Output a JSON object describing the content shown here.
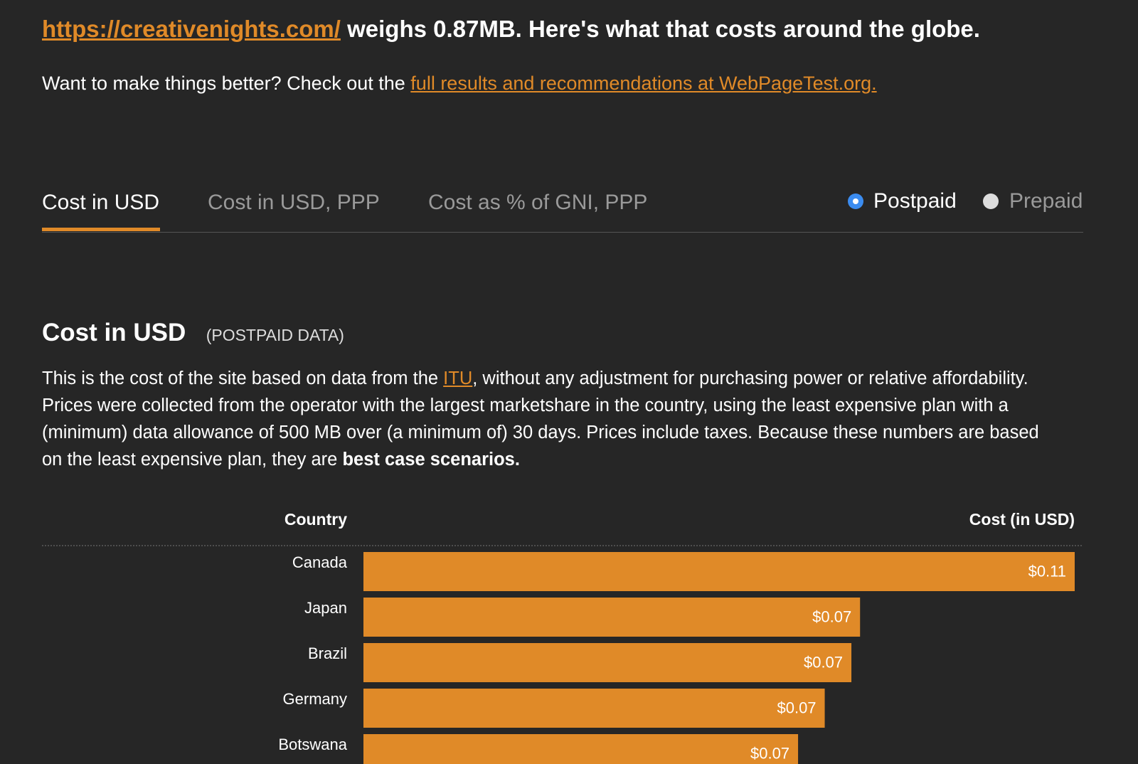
{
  "header": {
    "link": "https://creativenights.com/",
    "title_rest": "weighs 0.87MB. Here's what that costs around the globe."
  },
  "intro": {
    "text": "Want to make things better? Check out the",
    "link": "full results and recommendations at WebPageTest.org."
  },
  "tabs": [
    "Cost in USD",
    "Cost in USD, PPP",
    "Cost as % of GNI, PPP"
  ],
  "radios": [
    "Postpaid",
    "Prepaid"
  ],
  "section": {
    "title": "Cost in USD",
    "subtitle": "(POSTPAID DATA)",
    "paragraph": {
      "before": "This is the cost of the site based on data from the",
      "link": "ITU",
      "after": ", without any adjustment for purchasing power or relative affordability. Prices were collected from the operator with the largest marketshare in the country, using the least expensive plan with a (minimum) data allowance of 500 MB over (a minimum of) 30 days. Prices include taxes. Because these numbers are based on the least expensive plan, they are",
      "bold": "best case scenarios."
    }
  },
  "chart_data": {
    "type": "bar",
    "orientation": "horizontal",
    "category_label": "Country",
    "value_label": "Cost (in USD)",
    "categories": [
      "Canada",
      "Japan",
      "Brazil",
      "Germany",
      "Botswana"
    ],
    "values": [
      0.1067,
      0.0745,
      0.0732,
      0.0692,
      0.0652
    ],
    "value_labels": [
      "$0.11",
      "$0.07",
      "$0.07",
      "$0.07",
      "$0.07"
    ],
    "color": "#e08a28",
    "xlim": [
      0,
      0.1067
    ]
  }
}
